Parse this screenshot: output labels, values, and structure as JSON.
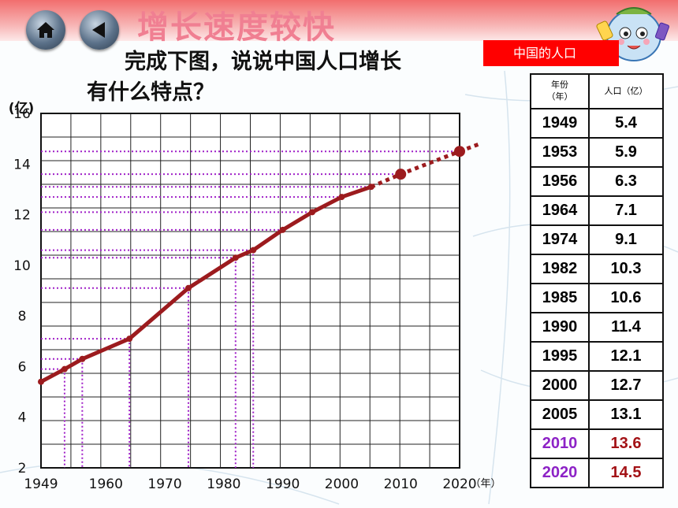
{
  "lesson_title": "增长速度较快",
  "question": {
    "line1": "完成下图，说说中国人口增长",
    "line2": "有什么特点？"
  },
  "table": {
    "banner": "中国的人口",
    "headers": {
      "year": "年份\n（年）",
      "population": "人口（亿）"
    },
    "rows": [
      {
        "year": "1949",
        "population": "5.4"
      },
      {
        "year": "1953",
        "population": "5.9"
      },
      {
        "year": "1956",
        "population": "6.3"
      },
      {
        "year": "1964",
        "population": "7.1"
      },
      {
        "year": "1974",
        "population": "9.1"
      },
      {
        "year": "1982",
        "population": "10.3"
      },
      {
        "year": "1985",
        "population": "10.6"
      },
      {
        "year": "1990",
        "population": "11.4"
      },
      {
        "year": "1995",
        "population": "12.1"
      },
      {
        "year": "2000",
        "population": "12.7"
      },
      {
        "year": "2005",
        "population": "13.1"
      },
      {
        "year": "2010",
        "population": "13.6",
        "projected": true
      },
      {
        "year": "2020",
        "population": "14.5",
        "projected": true
      }
    ]
  },
  "colors": {
    "line": "#9c1b1e",
    "guide": "#a020c8",
    "projected_year": "#8d22c6",
    "projected_value": "#a31216",
    "banner": "#ff0000"
  },
  "icons": [
    "home-icon",
    "back-arrow-icon",
    "mascot-icon"
  ],
  "chart_data": {
    "type": "line",
    "ylabel": "(亿)",
    "xlabel": "（年）",
    "xlim": [
      1949,
      2020
    ],
    "ylim": [
      2,
      16
    ],
    "xticks": [
      "1949",
      "1960",
      "1970",
      "1980",
      "1990",
      "2000",
      "2010",
      "2020"
    ],
    "yticks": [
      "2",
      "4",
      "6",
      "8",
      "10",
      "12",
      "14",
      "16"
    ],
    "grid": true,
    "series": [
      {
        "style": "solid",
        "x": [
          1949,
          1953,
          1956,
          1964,
          1974,
          1982,
          1985,
          1990,
          1995,
          2000,
          2005
        ],
        "y": [
          5.4,
          5.9,
          6.3,
          7.1,
          9.1,
          10.3,
          10.6,
          11.4,
          12.1,
          12.7,
          13.1
        ]
      },
      {
        "style": "dotted",
        "x": [
          2005,
          2010,
          2020
        ],
        "y": [
          13.1,
          13.6,
          14.5
        ]
      }
    ]
  }
}
